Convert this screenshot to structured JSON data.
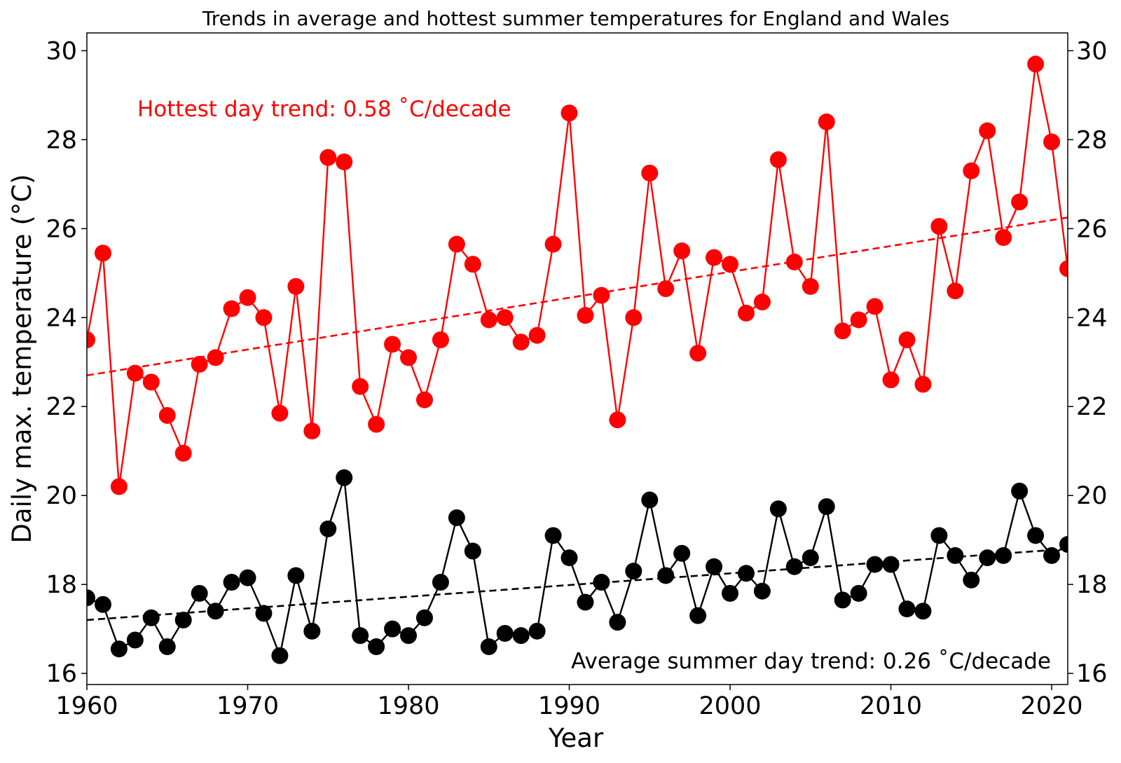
{
  "chart_data": {
    "type": "line",
    "title": "Trends in average and hottest summer temperatures for England and Wales",
    "xlabel": "Year",
    "ylabel": "Daily max. temperature (°C)",
    "xlim": [
      1960,
      2021
    ],
    "ylim": [
      15.75,
      30.4
    ],
    "xticks": [
      "1960",
      "1970",
      "1980",
      "1990",
      "2000",
      "2010",
      "2020"
    ],
    "yticks": [
      "16",
      "18",
      "20",
      "22",
      "24",
      "26",
      "28",
      "30"
    ],
    "right_axis_ticks": true,
    "grid": false,
    "x": [
      1960,
      1961,
      1962,
      1963,
      1964,
      1965,
      1966,
      1967,
      1968,
      1969,
      1970,
      1971,
      1972,
      1973,
      1974,
      1975,
      1976,
      1977,
      1978,
      1979,
      1980,
      1981,
      1982,
      1983,
      1984,
      1985,
      1986,
      1987,
      1988,
      1989,
      1990,
      1991,
      1992,
      1993,
      1994,
      1995,
      1996,
      1997,
      1998,
      1999,
      2000,
      2001,
      2002,
      2003,
      2004,
      2005,
      2006,
      2007,
      2008,
      2009,
      2010,
      2011,
      2012,
      2013,
      2014,
      2015,
      2016,
      2017,
      2018,
      2019,
      2020,
      2021
    ],
    "series": [
      {
        "role": "hottest",
        "color": "#ff0000",
        "values": [
          23.5,
          25.45,
          20.2,
          22.75,
          22.55,
          21.8,
          20.95,
          22.95,
          23.1,
          24.2,
          24.45,
          24.0,
          21.85,
          24.7,
          21.45,
          27.6,
          27.5,
          22.45,
          21.6,
          23.4,
          23.1,
          22.15,
          23.5,
          25.65,
          25.2,
          23.95,
          24.0,
          23.45,
          23.6,
          25.65,
          28.6,
          24.05,
          24.5,
          21.7,
          24.0,
          27.25,
          24.65,
          25.5,
          23.2,
          25.35,
          25.2,
          24.1,
          24.35,
          27.55,
          25.25,
          24.7,
          28.4,
          23.7,
          23.95,
          24.25,
          22.6,
          23.5,
          22.5,
          26.05,
          24.6,
          27.3,
          28.2,
          25.8,
          26.6,
          29.7,
          27.95,
          25.1
        ]
      },
      {
        "role": "average",
        "color": "#000000",
        "values": [
          17.7,
          17.55,
          16.55,
          16.75,
          17.25,
          16.6,
          17.2,
          17.8,
          17.4,
          18.05,
          18.15,
          17.35,
          16.4,
          18.2,
          16.95,
          19.25,
          20.4,
          16.85,
          16.6,
          17.0,
          16.85,
          17.25,
          18.05,
          19.5,
          18.75,
          16.6,
          16.9,
          16.85,
          16.95,
          19.1,
          18.6,
          17.6,
          18.05,
          17.15,
          18.3,
          19.9,
          18.2,
          18.7,
          17.3,
          18.4,
          17.8,
          18.25,
          17.85,
          19.7,
          18.4,
          18.6,
          19.75,
          17.65,
          17.8,
          18.45,
          18.45,
          17.45,
          17.4,
          19.1,
          18.65,
          18.1,
          18.6,
          18.65,
          20.1,
          19.1,
          18.65,
          18.9
        ]
      }
    ],
    "trends": [
      {
        "role": "hottest",
        "color": "#ff0000",
        "dashed": true,
        "y_start": 22.7,
        "y_end": 26.25
      },
      {
        "role": "average",
        "color": "#000000",
        "dashed": true,
        "y_start": 17.2,
        "y_end": 18.8
      }
    ],
    "annotations": [
      {
        "text": "Hottest day trend: 0.58 ˚C/decade",
        "color": "#ff0000",
        "placement": "upper-left"
      },
      {
        "text": "Average summer day trend: 0.26 ˚C/decade",
        "color": "#000000",
        "placement": "lower-right"
      }
    ]
  }
}
